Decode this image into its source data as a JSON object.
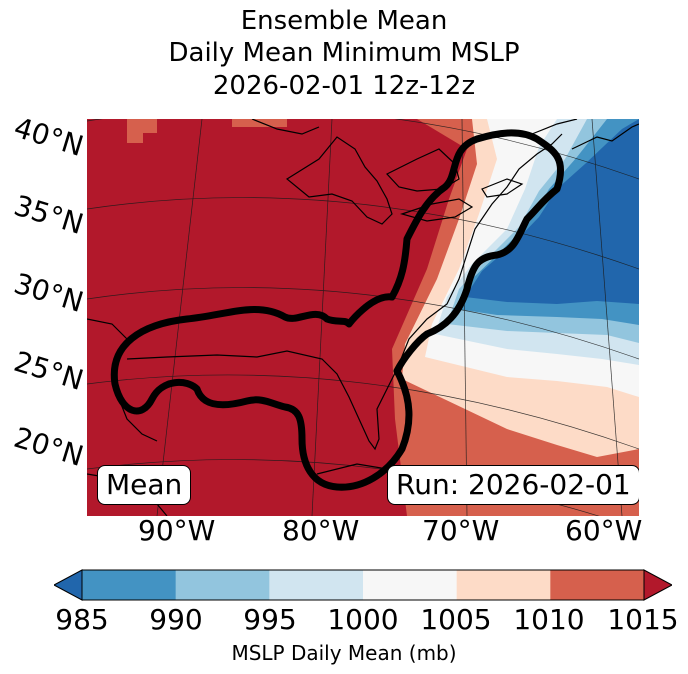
{
  "title": {
    "line1": "Ensemble Mean",
    "line2": "Daily Mean Minimum MSLP",
    "line3": "2026-02-01 12z-12z"
  },
  "map": {
    "latitude_labels": [
      "40°N",
      "35°N",
      "30°N",
      "25°N",
      "20°N"
    ],
    "longitude_labels": [
      "90°W",
      "80°W",
      "70°W",
      "60°W"
    ],
    "legend_left": "Mean",
    "legend_right": "Run: 2026-02-01",
    "colors": {
      "lt985": "#2166ac",
      "b985_990": "#4393c3",
      "b990_995": "#92c5de",
      "b995_1000": "#d1e5f0",
      "b1000_1005": "#f7f7f7",
      "b1005_1010": "#fddbc7",
      "b1010_1015": "#d6604d",
      "gt1015": "#b2182b",
      "contour": "#000000",
      "coast": "#000000"
    }
  },
  "colorbar": {
    "ticks": [
      "985",
      "990",
      "995",
      "1000",
      "1005",
      "1010",
      "1015"
    ],
    "label": "MSLP Daily Mean (mb)",
    "colors": [
      "#4393c3",
      "#92c5de",
      "#d1e5f0",
      "#f7f7f7",
      "#fddbc7",
      "#d6604d"
    ],
    "under_color": "#2166ac",
    "over_color": "#b2182b"
  }
}
